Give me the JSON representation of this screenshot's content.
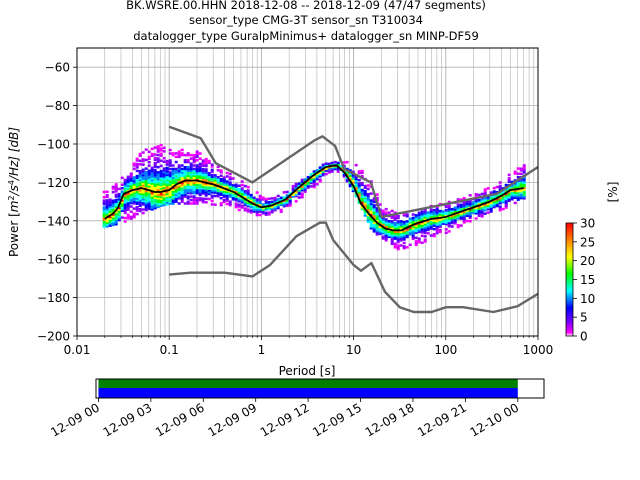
{
  "figure": {
    "title_lines": [
      "BK.WSRE.00.HHN   2018-12-08 -- 2018-12-09  (47/47 segments)",
      "sensor_type CMG-3T sensor_sn T310034",
      "datalogger_type GuralpMinimus+ datalogger_sn MINP-DF59"
    ]
  },
  "chart_data": [
    {
      "type": "heatmap",
      "subtype": "probabilistic-power-spectral-density",
      "xlabel": "Period [s]",
      "ylabel": "Power [m$^2$/s$^4$/Hz] [dB]",
      "ylabel_parts": {
        "prefix": "Power [",
        "m": "m",
        "m_exp": "2",
        "slash1": "/s",
        "s_exp": "4",
        "tail": "/Hz] [dB]"
      },
      "x_scale": "log",
      "xlim": [
        0.01,
        1000
      ],
      "ylim": [
        -200,
        -50
      ],
      "x_ticks": [
        0.01,
        0.1,
        1,
        10,
        100,
        1000
      ],
      "x_tick_labels": [
        "0.01",
        "0.1",
        "1",
        "10",
        "100",
        "1000"
      ],
      "y_ticks": [
        -200,
        -180,
        -160,
        -140,
        -120,
        -100,
        -80,
        -60
      ],
      "y_tick_labels": [
        "−200",
        "−180",
        "−160",
        "−140",
        "−120",
        "−100",
        "−80",
        "−60"
      ],
      "grid": true,
      "colorbar": {
        "label": "[%]",
        "range": [
          0,
          30
        ],
        "ticks": [
          0,
          5,
          10,
          15,
          20,
          25,
          30
        ],
        "tick_labels": [
          "0",
          "5",
          "10",
          "15",
          "20",
          "25",
          "30"
        ],
        "colormap": [
          "#ffffff",
          "#ff00ff",
          "#8000ff",
          "#0000ff",
          "#00ffff",
          "#00ff00",
          "#ffff00",
          "#ff8000",
          "#ff0000"
        ]
      },
      "colors": {
        "noise_model": "#666666",
        "mode_line": "#000000"
      },
      "series": [
        {
          "role": "high-noise-model",
          "x": [
            0.1,
            0.22,
            0.32,
            0.8,
            3.8,
            4.6,
            6.3,
            7.9,
            15.4,
            20,
            354.8,
            1000
          ],
          "y": [
            -91,
            -97,
            -110,
            -120,
            -98,
            -96,
            -101,
            -113,
            -120,
            -138,
            -126,
            -112
          ]
        },
        {
          "role": "low-noise-model",
          "x": [
            0.1,
            0.17,
            0.4,
            0.8,
            1.24,
            2.4,
            4.3,
            5,
            6,
            10,
            12,
            15.6,
            21.9,
            31.6,
            45,
            70,
            101,
            154,
            328,
            600,
            1000
          ],
          "y": [
            -168,
            -167,
            -167,
            -169,
            -163,
            -148,
            -141,
            -141,
            -150,
            -163,
            -166,
            -162,
            -177,
            -185,
            -187.5,
            -187.5,
            -185,
            -185,
            -187.5,
            -184.5,
            -178
          ]
        },
        {
          "role": "mode",
          "x": [
            0.02,
            0.025,
            0.028,
            0.032,
            0.04,
            0.05,
            0.06,
            0.07,
            0.08,
            0.1,
            0.12,
            0.15,
            0.2,
            0.3,
            0.5,
            0.8,
            1,
            1.3,
            1.8,
            2.5,
            3.5,
            5,
            6.5,
            8,
            10,
            12,
            15,
            18,
            22,
            27,
            33,
            40,
            50,
            70,
            100,
            150,
            200,
            300,
            400,
            500,
            700
          ],
          "y": [
            -139,
            -136,
            -133,
            -126,
            -124,
            -123,
            -124,
            -125,
            -125,
            -124,
            -121,
            -119,
            -119,
            -121,
            -125,
            -131,
            -133,
            -132,
            -129,
            -123,
            -117,
            -112,
            -111,
            -115,
            -122,
            -131,
            -137,
            -141,
            -144,
            -145,
            -145,
            -143,
            -141,
            -139,
            -138,
            -135,
            -133,
            -130,
            -127,
            -124,
            -123
          ]
        }
      ],
      "density_bands": [
        {
          "x": [
            0.02,
            0.03,
            0.05,
            0.08,
            0.1,
            0.2,
            0.4,
            0.8,
            1,
            1.5,
            3,
            5,
            7,
            10,
            15,
            20,
            30,
            50,
            100,
            200,
            400,
            700
          ],
          "upper": [
            -124,
            -117,
            -103,
            -100,
            -102,
            -104,
            -114,
            -123,
            -128,
            -126,
            -117,
            -109,
            -109,
            -110,
            -119,
            -133,
            -136,
            -134,
            -130,
            -126,
            -118,
            -110
          ],
          "lower": [
            -143,
            -141,
            -136,
            -132,
            -131,
            -131,
            -132,
            -137,
            -137,
            -136,
            -126,
            -116,
            -114,
            -126,
            -144,
            -150,
            -155,
            -152,
            -146,
            -139,
            -134,
            -128
          ]
        }
      ]
    },
    {
      "type": "bar",
      "subtype": "data-coverage",
      "x_tick_labels": [
        "12-09 00",
        "12-09 03",
        "12-09 06",
        "12-09 09",
        "12-09 12",
        "12-09 15",
        "12-09 18",
        "12-09 21",
        "12-10 00"
      ],
      "x_range_hours": [
        -0.14,
        25.5
      ],
      "tick_hours": [
        0,
        3,
        6,
        9,
        12,
        15,
        18,
        21,
        24
      ],
      "series": [
        {
          "name": "coverage",
          "start_hour": 0,
          "end_hour": 24,
          "color": "#008000"
        },
        {
          "name": "used-data",
          "start_hour": 0,
          "end_hour": 24,
          "color": "#0000ff"
        }
      ]
    }
  ]
}
